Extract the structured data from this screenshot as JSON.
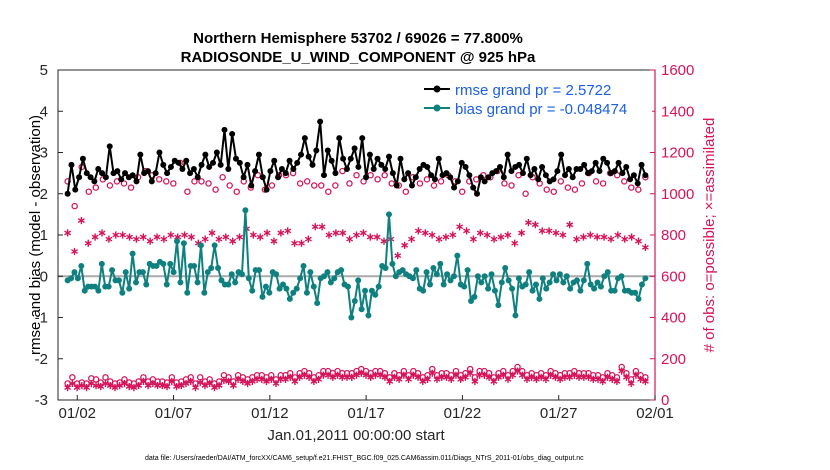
{
  "chart_data": {
    "type": "line",
    "title": "Northern Hemisphere 53702 / 69026 = 77.800%",
    "subtitle": "RADIOSONDE_U_WIND_COMPONENT @ 925 hPa",
    "xlabel": "Jan.01,2011 00:00:00 start",
    "ylabel_left": "rmse and bias (model - observation)",
    "ylabel_right": "# of obs: o=possible; ×=assimilated",
    "footnote": "data file: /Users/raeder/DAI/ATM_forcXX/CAM6_setup/f.e21.FHIST_BGC.f09_025.CAM6assim.011/Diags_NTrS_2011-01/obs_diag_output.nc",
    "x_unit": "days since Jan.01,2011",
    "xlim": [
      0,
      31
    ],
    "ylim_left": [
      -3,
      5
    ],
    "ylim_right": [
      0,
      1600
    ],
    "x_ticks": [
      1,
      6,
      11,
      16,
      21,
      26,
      31
    ],
    "x_tick_labels": [
      "01/02",
      "01/07",
      "01/12",
      "01/17",
      "01/22",
      "01/27",
      "02/01"
    ],
    "y_ticks_left": [
      -3,
      -2,
      -1,
      0,
      1,
      2,
      3,
      4,
      5
    ],
    "y_ticks_right": [
      0,
      200,
      400,
      600,
      800,
      1000,
      1200,
      1400,
      1600
    ],
    "zero_line": 0,
    "legend": [
      {
        "label": "rmse grand pr = 2.5722",
        "color": "#000000"
      },
      {
        "label": "bias grand pr = -0.048474",
        "color": "#0F8080"
      }
    ],
    "colors": {
      "rmse": "#000000",
      "bias": "#0F8080",
      "obs": "#D6145A",
      "legend_text": "#1A5FE6",
      "zero_line": "#AAAAAA"
    },
    "series": [
      {
        "name": "rmse",
        "axis": "left",
        "marker": "filled-circle",
        "values": [
          2.0,
          2.7,
          2.1,
          2.4,
          2.85,
          2.5,
          2.4,
          2.3,
          2.6,
          2.5,
          2.4,
          3.15,
          2.5,
          2.55,
          2.35,
          2.5,
          2.4,
          2.45,
          2.3,
          2.95,
          2.5,
          2.55,
          2.3,
          2.5,
          3.0,
          2.7,
          2.5,
          2.65,
          2.8,
          2.75,
          2.6,
          2.8,
          2.5,
          2.6,
          2.4,
          2.7,
          2.95,
          2.65,
          2.75,
          3.0,
          2.7,
          3.55,
          2.6,
          3.45,
          2.85,
          2.75,
          2.4,
          2.7,
          2.2,
          2.55,
          2.95,
          2.4,
          2.1,
          2.55,
          2.8,
          2.4,
          2.6,
          2.5,
          2.8,
          2.6,
          2.75,
          2.95,
          3.35,
          2.9,
          2.7,
          3.05,
          3.75,
          2.45,
          3.05,
          2.8,
          2.5,
          3.35,
          2.85,
          2.6,
          2.85,
          3.1,
          2.65,
          3.35,
          2.4,
          2.95,
          2.6,
          2.85,
          2.7,
          2.6,
          2.9,
          2.5,
          2.2,
          2.85,
          2.35,
          2.5,
          2.2,
          2.4,
          2.6,
          2.7,
          2.65,
          2.45,
          2.35,
          2.85,
          2.45,
          2.5,
          2.4,
          2.15,
          2.3,
          2.75,
          2.65,
          2.45,
          2.15,
          2.0,
          2.4,
          2.3,
          2.4,
          2.5,
          2.55,
          2.65,
          2.4,
          2.95,
          2.55,
          2.65,
          2.7,
          2.5,
          2.85,
          2.45,
          2.6,
          2.35,
          2.65,
          2.45,
          2.3,
          2.35,
          2.55,
          2.95,
          2.45,
          2.6,
          2.4,
          2.6,
          2.6,
          2.7,
          2.5,
          2.55,
          2.75,
          2.55,
          2.85,
          2.75,
          2.5,
          2.55,
          2.75,
          2.5,
          2.65,
          2.35,
          2.45,
          2.25,
          2.7,
          2.45
        ]
      },
      {
        "name": "bias",
        "axis": "left",
        "marker": "filled-circle",
        "values": [
          -0.1,
          -0.05,
          0.1,
          -0.05,
          0.25,
          -0.35,
          -0.25,
          -0.25,
          -0.25,
          -0.35,
          0.3,
          -0.25,
          -0.25,
          0.15,
          -0.1,
          -0.1,
          -0.4,
          0.1,
          -0.3,
          0.55,
          -0.15,
          0.1,
          0.1,
          -0.2,
          0.3,
          0.25,
          0.25,
          0.35,
          0.3,
          -0.2,
          0.3,
          0.1,
          0.85,
          -0.15,
          0.8,
          -0.4,
          0.25,
          0.25,
          -0.15,
          0.75,
          -0.4,
          0.1,
          0.2,
          0.75,
          0.2,
          -0.1,
          -0.2,
          -0.2,
          0.05,
          -0.15,
          0.1,
          0.05,
          1.6,
          -0.05,
          -0.35,
          0.15,
          0.15,
          -0.5,
          -0.25,
          -0.4,
          0.1,
          0.05,
          -0.3,
          -0.2,
          -0.3,
          -0.55,
          -0.4,
          -0.3,
          -0.05,
          0.25,
          -0.4,
          0.1,
          -0.25,
          -0.65,
          -0.05,
          0.0,
          0.1,
          -0.15,
          -0.05,
          0.1,
          0.15,
          -0.2,
          -0.25,
          -1.0,
          -0.6,
          -0.1,
          -0.8,
          -0.35,
          -0.95,
          -0.35,
          -0.45,
          -0.25,
          0.25,
          0.2,
          1.5,
          0.3,
          0.0,
          0.1,
          0.15,
          0.05,
          0.0,
          -0.05,
          0.15,
          -0.3,
          -0.35,
          0.1,
          -0.2,
          0.2,
          0.05,
          0.3,
          -0.2,
          0.05,
          -0.1,
          0.0,
          0.5,
          -0.2,
          -0.25,
          0.15,
          -0.6,
          -0.5,
          0.0,
          -0.15,
          0.0,
          -0.3,
          0.05,
          -0.35,
          -0.7,
          -0.15,
          0.2,
          -0.1,
          -0.3,
          -0.95,
          -0.05,
          -0.25,
          -0.2,
          0.1,
          -0.35,
          -0.2,
          -0.55,
          -0.05,
          -0.3,
          -0.15,
          0.05,
          -0.1,
          0.05,
          -0.15,
          0.0,
          -0.3,
          -0.15,
          -0.1,
          -0.35,
          -0.1,
          0.3,
          -0.2,
          -0.3,
          -0.15,
          -0.25,
          0.0,
          0.1,
          -0.35,
          -0.35,
          -0.05,
          0.0,
          -0.35,
          -0.35,
          -0.4,
          -0.4,
          -0.55,
          -0.2,
          -0.05
        ]
      },
      {
        "name": "obs possible (day)",
        "axis": "right",
        "marker": "open-circle",
        "values": [
          1060,
          940,
          1130,
          1010,
          1030,
          1070,
          1040,
          1060,
          1050,
          1030,
          1080,
          1110,
          1090,
          1070,
          1060,
          1050,
          1150,
          1010,
          1060,
          1060,
          1050,
          1020,
          1080,
          1040,
          1010,
          1060,
          1030,
          1090,
          1020,
          1040,
          1090,
          1090,
          1100,
          1050,
          1060,
          1040,
          1040,
          1010,
          1040,
          1110,
          1050,
          1090,
          1060,
          1090,
          1070,
          1090,
          1050,
          1040,
          1010,
          1080,
          1050,
          1070,
          1040,
          1060,
          1090,
          1060,
          1010,
          1060,
          1070,
          1090,
          1080,
          1110,
          1050,
          1040,
          1090,
          1000,
          1080,
          1050,
          1020,
          1010,
          1060,
          1030,
          1020,
          1050,
          1100,
          1060,
          1050,
          1100,
          1090,
          1060,
          1030,
          1020,
          1080
        ]
      },
      {
        "name": "obs assimilated (day)",
        "axis": "right",
        "marker": "asterisk",
        "values": [
          810,
          720,
          870,
          760,
          790,
          810,
          780,
          800,
          800,
          790,
          780,
          790,
          770,
          790,
          780,
          800,
          790,
          800,
          790,
          760,
          780,
          810,
          780,
          790,
          770,
          790,
          830,
          800,
          790,
          810,
          770,
          810,
          820,
          760,
          760,
          780,
          840,
          840,
          800,
          810,
          810,
          780,
          800,
          810,
          790,
          790,
          770,
          780,
          700,
          750,
          780,
          820,
          810,
          800,
          780,
          790,
          800,
          840,
          820,
          780,
          810,
          800,
          780,
          790,
          800,
          760,
          810,
          860,
          850,
          820,
          820,
          810,
          800,
          850,
          780,
          790,
          800,
          790,
          790,
          780,
          800,
          780,
          790,
          770,
          740
        ]
      },
      {
        "name": "obs possible (night)",
        "axis": "right",
        "marker": "open-circle",
        "values": [
          80,
          110,
          80,
          85,
          80,
          105,
          100,
          85,
          110,
          90,
          80,
          85,
          100,
          85,
          80,
          90,
          110,
          90,
          100,
          90,
          90,
          85,
          110,
          85,
          90,
          100,
          110,
          80,
          110,
          90,
          100,
          80,
          90,
          120,
          110,
          90,
          120,
          110,
          100,
          110,
          120,
          120,
          110,
          120,
          100,
          120,
          120,
          130,
          110,
          130,
          140,
          130,
          110,
          120,
          140,
          140,
          130,
          140,
          130,
          130,
          130,
          140,
          150,
          140,
          130,
          140,
          140,
          130,
          110,
          130,
          120,
          140,
          120,
          140,
          130,
          110,
          120,
          150,
          120,
          130,
          130,
          120,
          140,
          120,
          130,
          150,
          110,
          140,
          140,
          130,
          110,
          130,
          140,
          120,
          140,
          160,
          140,
          120,
          130,
          120,
          130,
          120,
          140,
          130,
          120,
          130,
          130,
          140,
          130,
          130,
          130,
          120,
          120,
          110,
          130,
          120,
          110,
          160,
          130,
          100,
          140,
          120,
          110
        ]
      },
      {
        "name": "obs assimilated (night)",
        "axis": "right",
        "marker": "asterisk",
        "values": [
          60,
          80,
          60,
          70,
          60,
          80,
          70,
          65,
          80,
          70,
          60,
          70,
          80,
          65,
          60,
          70,
          90,
          70,
          80,
          70,
          70,
          65,
          90,
          65,
          70,
          80,
          90,
          60,
          85,
          70,
          80,
          60,
          70,
          95,
          90,
          70,
          100,
          90,
          80,
          90,
          100,
          100,
          90,
          100,
          80,
          100,
          100,
          110,
          90,
          110,
          120,
          110,
          90,
          100,
          120,
          120,
          110,
          120,
          110,
          110,
          110,
          120,
          130,
          120,
          110,
          120,
          120,
          110,
          90,
          110,
          100,
          120,
          100,
          120,
          110,
          90,
          100,
          130,
          100,
          110,
          110,
          100,
          120,
          100,
          110,
          130,
          90,
          120,
          120,
          110,
          90,
          110,
          120,
          100,
          120,
          140,
          120,
          100,
          110,
          100,
          110,
          100,
          120,
          110,
          100,
          110,
          110,
          120,
          110,
          110,
          110,
          100,
          100,
          90,
          110,
          100,
          90,
          140,
          110,
          80,
          120,
          100,
          90
        ]
      }
    ]
  }
}
